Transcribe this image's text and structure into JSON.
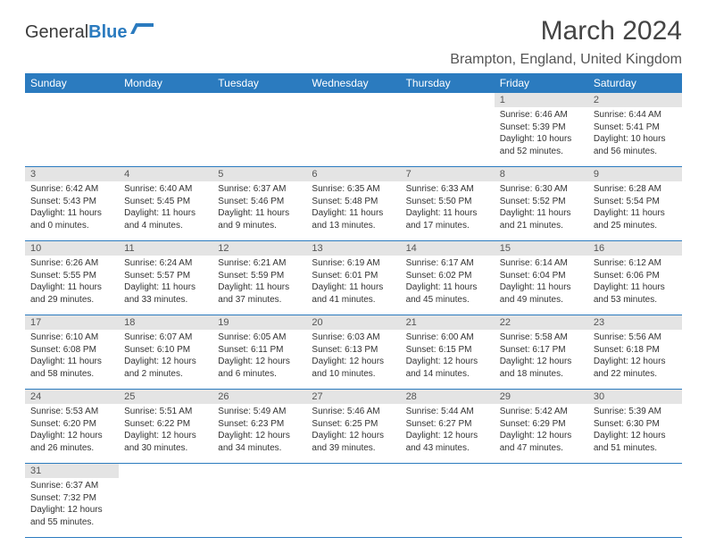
{
  "logo": {
    "text1": "General",
    "text2": "Blue"
  },
  "title": "March 2024",
  "location": "Brampton, England, United Kingdom",
  "colors": {
    "header_bg": "#2b7bbf",
    "header_text": "#ffffff",
    "daynum_bg": "#e4e4e4",
    "cell_border": "#2b7bbf"
  },
  "day_headers": [
    "Sunday",
    "Monday",
    "Tuesday",
    "Wednesday",
    "Thursday",
    "Friday",
    "Saturday"
  ],
  "weeks": [
    [
      {
        "n": "",
        "sr": "",
        "ss": "",
        "dl": ""
      },
      {
        "n": "",
        "sr": "",
        "ss": "",
        "dl": ""
      },
      {
        "n": "",
        "sr": "",
        "ss": "",
        "dl": ""
      },
      {
        "n": "",
        "sr": "",
        "ss": "",
        "dl": ""
      },
      {
        "n": "",
        "sr": "",
        "ss": "",
        "dl": ""
      },
      {
        "n": "1",
        "sr": "Sunrise: 6:46 AM",
        "ss": "Sunset: 5:39 PM",
        "dl": "Daylight: 10 hours and 52 minutes."
      },
      {
        "n": "2",
        "sr": "Sunrise: 6:44 AM",
        "ss": "Sunset: 5:41 PM",
        "dl": "Daylight: 10 hours and 56 minutes."
      }
    ],
    [
      {
        "n": "3",
        "sr": "Sunrise: 6:42 AM",
        "ss": "Sunset: 5:43 PM",
        "dl": "Daylight: 11 hours and 0 minutes."
      },
      {
        "n": "4",
        "sr": "Sunrise: 6:40 AM",
        "ss": "Sunset: 5:45 PM",
        "dl": "Daylight: 11 hours and 4 minutes."
      },
      {
        "n": "5",
        "sr": "Sunrise: 6:37 AM",
        "ss": "Sunset: 5:46 PM",
        "dl": "Daylight: 11 hours and 9 minutes."
      },
      {
        "n": "6",
        "sr": "Sunrise: 6:35 AM",
        "ss": "Sunset: 5:48 PM",
        "dl": "Daylight: 11 hours and 13 minutes."
      },
      {
        "n": "7",
        "sr": "Sunrise: 6:33 AM",
        "ss": "Sunset: 5:50 PM",
        "dl": "Daylight: 11 hours and 17 minutes."
      },
      {
        "n": "8",
        "sr": "Sunrise: 6:30 AM",
        "ss": "Sunset: 5:52 PM",
        "dl": "Daylight: 11 hours and 21 minutes."
      },
      {
        "n": "9",
        "sr": "Sunrise: 6:28 AM",
        "ss": "Sunset: 5:54 PM",
        "dl": "Daylight: 11 hours and 25 minutes."
      }
    ],
    [
      {
        "n": "10",
        "sr": "Sunrise: 6:26 AM",
        "ss": "Sunset: 5:55 PM",
        "dl": "Daylight: 11 hours and 29 minutes."
      },
      {
        "n": "11",
        "sr": "Sunrise: 6:24 AM",
        "ss": "Sunset: 5:57 PM",
        "dl": "Daylight: 11 hours and 33 minutes."
      },
      {
        "n": "12",
        "sr": "Sunrise: 6:21 AM",
        "ss": "Sunset: 5:59 PM",
        "dl": "Daylight: 11 hours and 37 minutes."
      },
      {
        "n": "13",
        "sr": "Sunrise: 6:19 AM",
        "ss": "Sunset: 6:01 PM",
        "dl": "Daylight: 11 hours and 41 minutes."
      },
      {
        "n": "14",
        "sr": "Sunrise: 6:17 AM",
        "ss": "Sunset: 6:02 PM",
        "dl": "Daylight: 11 hours and 45 minutes."
      },
      {
        "n": "15",
        "sr": "Sunrise: 6:14 AM",
        "ss": "Sunset: 6:04 PM",
        "dl": "Daylight: 11 hours and 49 minutes."
      },
      {
        "n": "16",
        "sr": "Sunrise: 6:12 AM",
        "ss": "Sunset: 6:06 PM",
        "dl": "Daylight: 11 hours and 53 minutes."
      }
    ],
    [
      {
        "n": "17",
        "sr": "Sunrise: 6:10 AM",
        "ss": "Sunset: 6:08 PM",
        "dl": "Daylight: 11 hours and 58 minutes."
      },
      {
        "n": "18",
        "sr": "Sunrise: 6:07 AM",
        "ss": "Sunset: 6:10 PM",
        "dl": "Daylight: 12 hours and 2 minutes."
      },
      {
        "n": "19",
        "sr": "Sunrise: 6:05 AM",
        "ss": "Sunset: 6:11 PM",
        "dl": "Daylight: 12 hours and 6 minutes."
      },
      {
        "n": "20",
        "sr": "Sunrise: 6:03 AM",
        "ss": "Sunset: 6:13 PM",
        "dl": "Daylight: 12 hours and 10 minutes."
      },
      {
        "n": "21",
        "sr": "Sunrise: 6:00 AM",
        "ss": "Sunset: 6:15 PM",
        "dl": "Daylight: 12 hours and 14 minutes."
      },
      {
        "n": "22",
        "sr": "Sunrise: 5:58 AM",
        "ss": "Sunset: 6:17 PM",
        "dl": "Daylight: 12 hours and 18 minutes."
      },
      {
        "n": "23",
        "sr": "Sunrise: 5:56 AM",
        "ss": "Sunset: 6:18 PM",
        "dl": "Daylight: 12 hours and 22 minutes."
      }
    ],
    [
      {
        "n": "24",
        "sr": "Sunrise: 5:53 AM",
        "ss": "Sunset: 6:20 PM",
        "dl": "Daylight: 12 hours and 26 minutes."
      },
      {
        "n": "25",
        "sr": "Sunrise: 5:51 AM",
        "ss": "Sunset: 6:22 PM",
        "dl": "Daylight: 12 hours and 30 minutes."
      },
      {
        "n": "26",
        "sr": "Sunrise: 5:49 AM",
        "ss": "Sunset: 6:23 PM",
        "dl": "Daylight: 12 hours and 34 minutes."
      },
      {
        "n": "27",
        "sr": "Sunrise: 5:46 AM",
        "ss": "Sunset: 6:25 PM",
        "dl": "Daylight: 12 hours and 39 minutes."
      },
      {
        "n": "28",
        "sr": "Sunrise: 5:44 AM",
        "ss": "Sunset: 6:27 PM",
        "dl": "Daylight: 12 hours and 43 minutes."
      },
      {
        "n": "29",
        "sr": "Sunrise: 5:42 AM",
        "ss": "Sunset: 6:29 PM",
        "dl": "Daylight: 12 hours and 47 minutes."
      },
      {
        "n": "30",
        "sr": "Sunrise: 5:39 AM",
        "ss": "Sunset: 6:30 PM",
        "dl": "Daylight: 12 hours and 51 minutes."
      }
    ],
    [
      {
        "n": "31",
        "sr": "Sunrise: 6:37 AM",
        "ss": "Sunset: 7:32 PM",
        "dl": "Daylight: 12 hours and 55 minutes."
      },
      {
        "n": "",
        "sr": "",
        "ss": "",
        "dl": ""
      },
      {
        "n": "",
        "sr": "",
        "ss": "",
        "dl": ""
      },
      {
        "n": "",
        "sr": "",
        "ss": "",
        "dl": ""
      },
      {
        "n": "",
        "sr": "",
        "ss": "",
        "dl": ""
      },
      {
        "n": "",
        "sr": "",
        "ss": "",
        "dl": ""
      },
      {
        "n": "",
        "sr": "",
        "ss": "",
        "dl": ""
      }
    ]
  ]
}
